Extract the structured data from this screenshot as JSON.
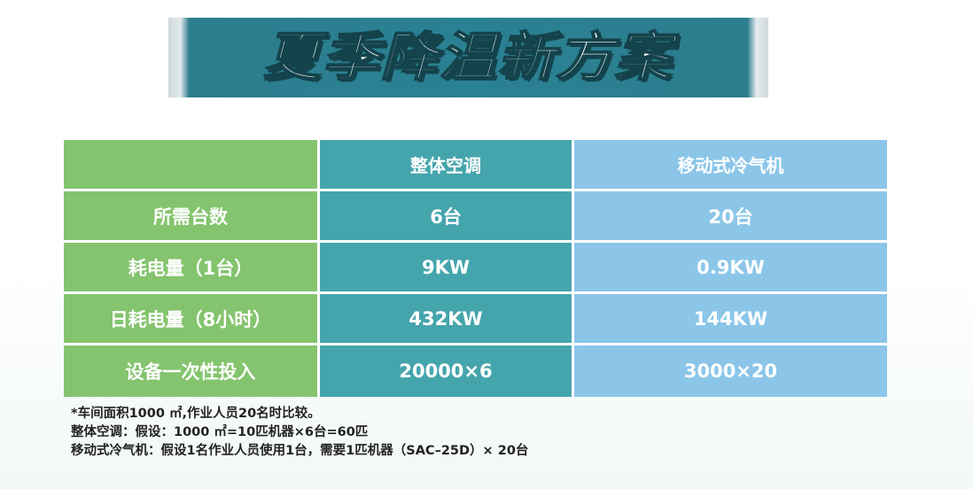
{
  "banner": {
    "title": "夏季降温新方案"
  },
  "table": {
    "headers": [
      "",
      "整体空调",
      "移动式冷气机"
    ],
    "rows": [
      {
        "label": "所需台数",
        "ac": "6台",
        "cooler": "20台"
      },
      {
        "label": "耗电量（1台）",
        "ac": "9KW",
        "cooler": "0.9KW"
      },
      {
        "label": "日耗电量（8小时）",
        "ac": "432KW",
        "cooler": "144KW"
      },
      {
        "label": "设备一次性投入",
        "ac": "20000×6",
        "cooler": "3000×20"
      }
    ]
  },
  "notes": [
    "*车间面积1000 ㎡,作业人员20名时比较。",
    "整体空调：假设：1000 ㎡=10匹机器×6台=60匹",
    "移动式冷气机：假设1名作业人员使用1台，需要1匹机器（SAC–25D）× 20台"
  ],
  "colors": {
    "banner_bg": "#2a8193",
    "label_column": "#84c46e",
    "ac_column": "#45a5ac",
    "cooler_column": "#8bc6e9"
  }
}
